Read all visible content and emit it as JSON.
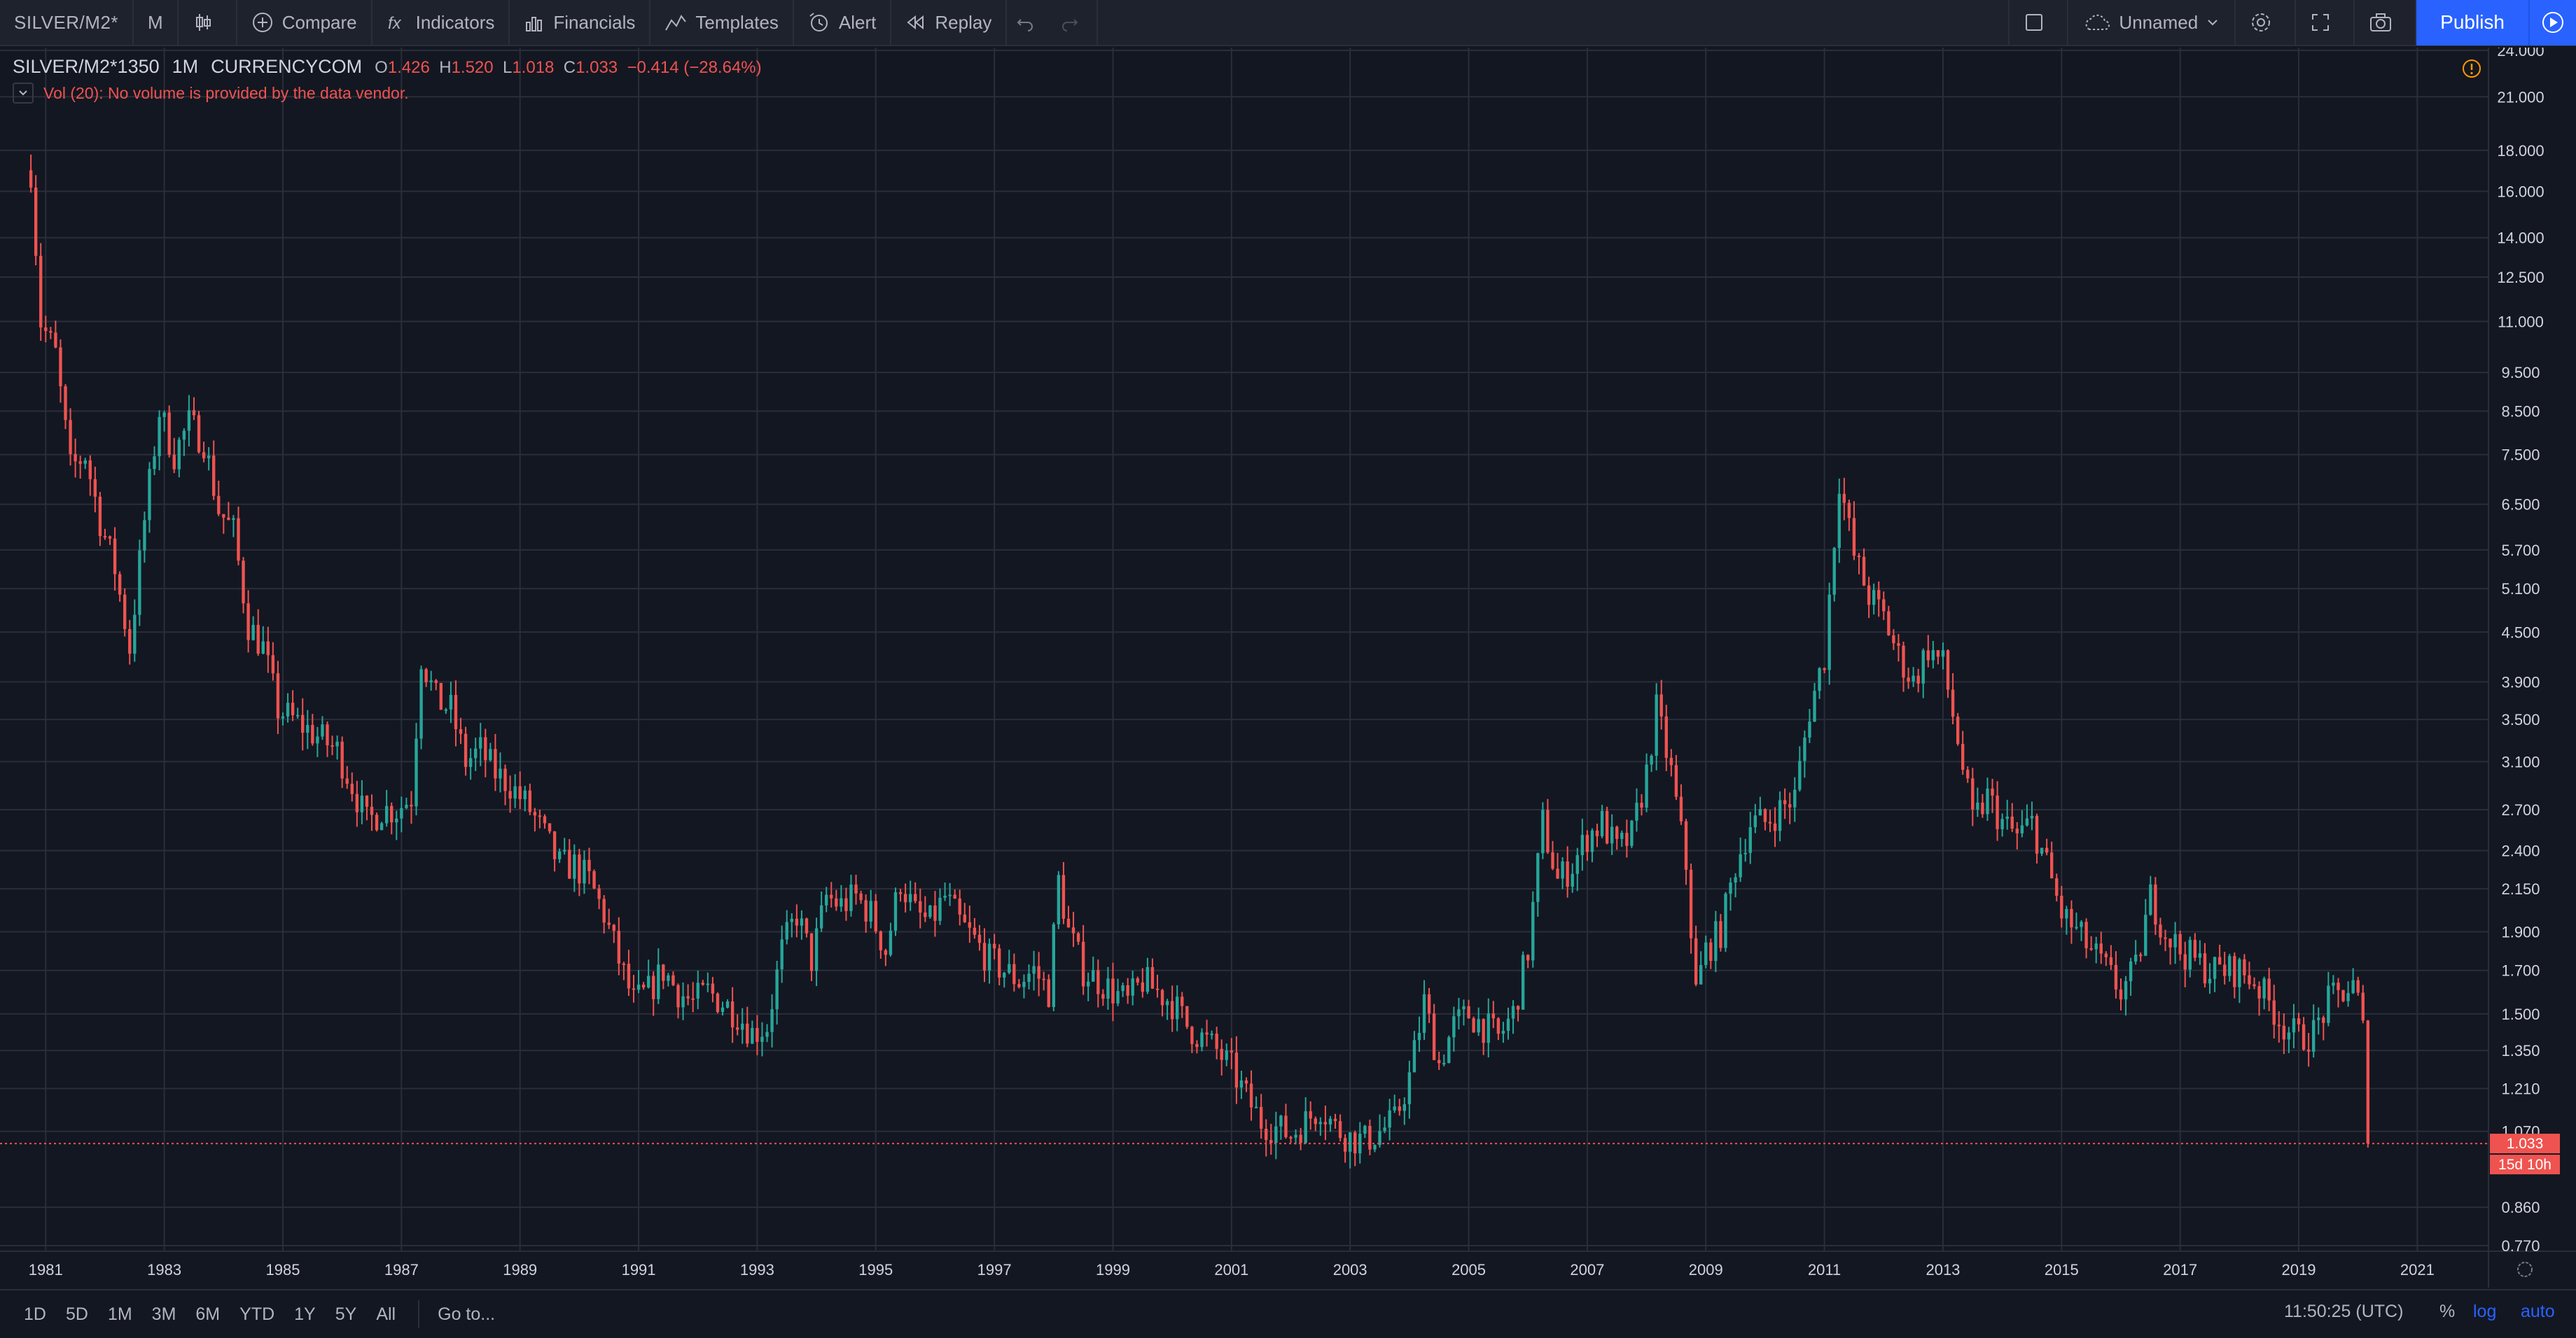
{
  "toolbar": {
    "symbol": "SILVER/M2*",
    "interval": "M",
    "compare": "Compare",
    "indicators": "Indicators",
    "financials": "Financials",
    "templates": "Templates",
    "alert": "Alert",
    "replay": "Replay",
    "layout_name": "Unnamed",
    "publish": "Publish"
  },
  "legend": {
    "symbol": "SILVER/M2*1350",
    "interval": "1M",
    "exchange": "CURRENCYCOM",
    "open_key": "O",
    "open": "1.426",
    "high_key": "H",
    "high": "1.520",
    "low_key": "L",
    "low": "1.018",
    "close_key": "C",
    "close": "1.033",
    "change": "−0.414 (−28.64%)"
  },
  "volume_notice": "Vol (20): No volume is provided by the data vendor.",
  "bottom": {
    "ranges": [
      "1D",
      "5D",
      "1M",
      "3M",
      "6M",
      "YTD",
      "1Y",
      "5Y",
      "All"
    ],
    "goto": "Go to...",
    "clock": "11:50:25 (UTC)",
    "pct": "%",
    "log": "log",
    "auto": "auto"
  },
  "colors": {
    "up": "#26a69a",
    "down": "#ef5350",
    "background": "#131722",
    "grid": "#2a2e39",
    "accent": "#2962ff"
  },
  "chart_data": {
    "type": "candlestick",
    "scale": "log",
    "grid": true,
    "x_ticks": [
      "1981",
      "1983",
      "1985",
      "1987",
      "1989",
      "1991",
      "1993",
      "1995",
      "1997",
      "1999",
      "2001",
      "2003",
      "2005",
      "2007",
      "2009",
      "2011",
      "2013",
      "2015",
      "2017",
      "2019",
      "2021"
    ],
    "y_ticks": [
      "24.000",
      "21.000",
      "18.000",
      "16.000",
      "14.000",
      "12.500",
      "11.000",
      "9.500",
      "8.500",
      "7.500",
      "6.500",
      "5.700",
      "5.100",
      "4.500",
      "3.900",
      "3.500",
      "3.100",
      "2.700",
      "2.400",
      "2.150",
      "1.900",
      "1.700",
      "1.500",
      "1.350",
      "1.210",
      "1.070",
      "0.860",
      "0.770"
    ],
    "ylim": [
      0.77,
      24.0
    ],
    "xlim": [
      "1980-08",
      "2021-12"
    ],
    "last_price": "1.033",
    "countdown": "15d 10h",
    "series_points": [
      [
        "1980-10",
        17.0
      ],
      [
        "1980-12",
        11.0
      ],
      [
        "1981-03",
        10.0
      ],
      [
        "1981-06",
        7.2
      ],
      [
        "1981-09",
        7.5
      ],
      [
        "1981-12",
        6.2
      ],
      [
        "1982-03",
        5.4
      ],
      [
        "1982-06",
        4.3
      ],
      [
        "1982-09",
        6.2
      ],
      [
        "1982-12",
        8.5
      ],
      [
        "1983-03",
        7.5
      ],
      [
        "1983-06",
        8.2
      ],
      [
        "1983-09",
        7.8
      ],
      [
        "1983-12",
        6.4
      ],
      [
        "1984-03",
        6.0
      ],
      [
        "1984-06",
        4.6
      ],
      [
        "1984-09",
        4.3
      ],
      [
        "1984-12",
        3.6
      ],
      [
        "1985-03",
        3.5
      ],
      [
        "1985-06",
        3.4
      ],
      [
        "1985-09",
        3.3
      ],
      [
        "1985-12",
        3.2
      ],
      [
        "1986-03",
        2.9
      ],
      [
        "1986-06",
        2.6
      ],
      [
        "1986-09",
        2.7
      ],
      [
        "1986-12",
        2.7
      ],
      [
        "1987-03",
        2.8
      ],
      [
        "1987-05",
        4.2
      ],
      [
        "1987-08",
        3.7
      ],
      [
        "1987-11",
        3.6
      ],
      [
        "1988-02",
        3.1
      ],
      [
        "1988-05",
        3.2
      ],
      [
        "1988-08",
        3.0
      ],
      [
        "1988-11",
        2.9
      ],
      [
        "1989-03",
        2.7
      ],
      [
        "1989-06",
        2.5
      ],
      [
        "1989-09",
        2.3
      ],
      [
        "1989-12",
        2.3
      ],
      [
        "1990-03",
        2.2
      ],
      [
        "1990-06",
        2.0
      ],
      [
        "1990-09",
        1.75
      ],
      [
        "1990-12",
        1.55
      ],
      [
        "1991-03",
        1.6
      ],
      [
        "1991-06",
        1.7
      ],
      [
        "1991-09",
        1.6
      ],
      [
        "1991-12",
        1.55
      ],
      [
        "1992-03",
        1.6
      ],
      [
        "1992-06",
        1.55
      ],
      [
        "1992-09",
        1.5
      ],
      [
        "1992-12",
        1.42
      ],
      [
        "1993-03",
        1.45
      ],
      [
        "1993-06",
        1.8
      ],
      [
        "1993-09",
        2.0
      ],
      [
        "1993-12",
        1.75
      ],
      [
        "1994-03",
        2.1
      ],
      [
        "1994-06",
        2.05
      ],
      [
        "1994-09",
        2.1
      ],
      [
        "1994-12",
        2.0
      ],
      [
        "1995-03",
        1.8
      ],
      [
        "1995-06",
        2.2
      ],
      [
        "1995-09",
        2.0
      ],
      [
        "1995-12",
        1.95
      ],
      [
        "1996-03",
        2.1
      ],
      [
        "1996-06",
        1.95
      ],
      [
        "1996-09",
        1.85
      ],
      [
        "1996-12",
        1.75
      ],
      [
        "1997-03",
        1.7
      ],
      [
        "1997-06",
        1.65
      ],
      [
        "1997-09",
        1.7
      ],
      [
        "1997-12",
        1.6
      ],
      [
        "1998-02",
        2.2
      ],
      [
        "1998-04",
        1.9
      ],
      [
        "1998-07",
        1.7
      ],
      [
        "1998-10",
        1.65
      ],
      [
        "1999-01",
        1.6
      ],
      [
        "1999-04",
        1.55
      ],
      [
        "1999-07",
        1.65
      ],
      [
        "1999-10",
        1.6
      ],
      [
        "2000-01",
        1.55
      ],
      [
        "2000-04",
        1.45
      ],
      [
        "2000-07",
        1.4
      ],
      [
        "2000-10",
        1.35
      ],
      [
        "2001-01",
        1.28
      ],
      [
        "2001-04",
        1.18
      ],
      [
        "2001-07",
        1.1
      ],
      [
        "2001-10",
        1.08
      ],
      [
        "2002-01",
        1.06
      ],
      [
        "2002-04",
        1.1
      ],
      [
        "2002-07",
        1.15
      ],
      [
        "2002-10",
        1.08
      ],
      [
        "2003-01",
        1.05
      ],
      [
        "2003-04",
        1.04
      ],
      [
        "2003-07",
        1.07
      ],
      [
        "2003-10",
        1.1
      ],
      [
        "2004-01",
        1.25
      ],
      [
        "2004-04",
        1.55
      ],
      [
        "2004-07",
        1.3
      ],
      [
        "2004-10",
        1.45
      ],
      [
        "2005-01",
        1.5
      ],
      [
        "2005-04",
        1.45
      ],
      [
        "2005-07",
        1.4
      ],
      [
        "2005-10",
        1.5
      ],
      [
        "2006-01",
        1.8
      ],
      [
        "2006-04",
        2.6
      ],
      [
        "2006-07",
        2.2
      ],
      [
        "2006-10",
        2.3
      ],
      [
        "2007-01",
        2.5
      ],
      [
        "2007-04",
        2.6
      ],
      [
        "2007-07",
        2.4
      ],
      [
        "2007-10",
        2.5
      ],
      [
        "2008-01",
        3.0
      ],
      [
        "2008-03",
        3.6
      ],
      [
        "2008-06",
        3.0
      ],
      [
        "2008-09",
        2.3
      ],
      [
        "2008-11",
        1.6
      ],
      [
        "2009-01",
        1.8
      ],
      [
        "2009-04",
        1.9
      ],
      [
        "2009-07",
        2.3
      ],
      [
        "2009-10",
        2.6
      ],
      [
        "2010-01",
        2.6
      ],
      [
        "2010-04",
        2.7
      ],
      [
        "2010-07",
        2.8
      ],
      [
        "2010-10",
        3.6
      ],
      [
        "2011-01",
        4.2
      ],
      [
        "2011-04",
        7.0
      ],
      [
        "2011-07",
        5.6
      ],
      [
        "2011-10",
        5.0
      ],
      [
        "2012-01",
        4.7
      ],
      [
        "2012-04",
        4.2
      ],
      [
        "2012-07",
        3.9
      ],
      [
        "2012-10",
        4.3
      ],
      [
        "2013-01",
        4.1
      ],
      [
        "2013-04",
        3.3
      ],
      [
        "2013-07",
        2.6
      ],
      [
        "2013-10",
        2.8
      ],
      [
        "2014-01",
        2.6
      ],
      [
        "2014-04",
        2.5
      ],
      [
        "2014-07",
        2.6
      ],
      [
        "2014-10",
        2.3
      ],
      [
        "2015-01",
        2.0
      ],
      [
        "2015-04",
        1.9
      ],
      [
        "2015-07",
        1.8
      ],
      [
        "2015-10",
        1.7
      ],
      [
        "2016-01",
        1.6
      ],
      [
        "2016-04",
        1.7
      ],
      [
        "2016-07",
        2.1
      ],
      [
        "2016-10",
        1.9
      ],
      [
        "2017-01",
        1.8
      ],
      [
        "2017-04",
        1.75
      ],
      [
        "2017-07",
        1.7
      ],
      [
        "2017-10",
        1.7
      ],
      [
        "2018-01",
        1.7
      ],
      [
        "2018-04",
        1.65
      ],
      [
        "2018-07",
        1.55
      ],
      [
        "2018-10",
        1.45
      ],
      [
        "2019-01",
        1.4
      ],
      [
        "2019-04",
        1.42
      ],
      [
        "2019-07",
        1.55
      ],
      [
        "2019-10",
        1.6
      ],
      [
        "2019-12",
        1.62
      ],
      [
        "2020-01",
        1.55
      ],
      [
        "2020-02",
        1.426
      ],
      [
        "2020-03",
        1.033
      ]
    ]
  }
}
